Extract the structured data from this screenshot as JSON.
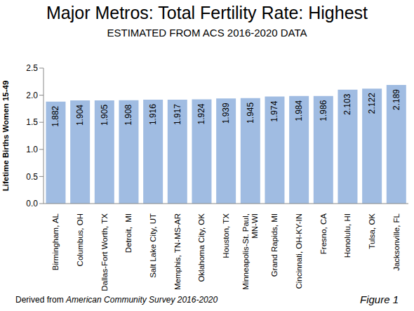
{
  "chart_data": {
    "type": "bar",
    "title": "Major Metros: Total Fertility Rate: Highest",
    "subtitle": "ESTIMATED FROM ACS 2016-2020 DATA",
    "y_label": "Lifetime Births Women 15-49",
    "categories": [
      "Birmingham, AL",
      "Columbus, OH",
      "Dallas-Fort Worth, TX",
      "Detroit,  MI",
      "Salt Lake City, UT",
      "Memphis, TN-MS-AR",
      "Oklahoma City, OK",
      "Houston, TX",
      "Minneapolis-St. Paul, MN-WI",
      "Grand Rapids, MI",
      "Cincinnati, OH-KY-IN",
      "Fresno, CA",
      "Honolulu, HI",
      "Tulsa, OK",
      "Jacksonville, FL"
    ],
    "values": [
      1.882,
      1.904,
      1.905,
      1.908,
      1.916,
      1.917,
      1.924,
      1.939,
      1.945,
      1.974,
      1.984,
      1.986,
      2.103,
      2.122,
      2.189
    ],
    "color": "#a0bce2",
    "ylim": [
      0,
      2.5
    ],
    "yticks": [
      {
        "value": 0,
        "label": "0.0"
      },
      0.5,
      {
        "value": 1,
        "label": "1.0"
      },
      1.5,
      {
        "value": 2,
        "label": "2.0"
      },
      2.5
    ],
    "grid": false,
    "data_labels": true,
    "annotations": [
      "Derived from",
      "American Community Survey 2016-2020",
      "Figure 1"
    ]
  }
}
